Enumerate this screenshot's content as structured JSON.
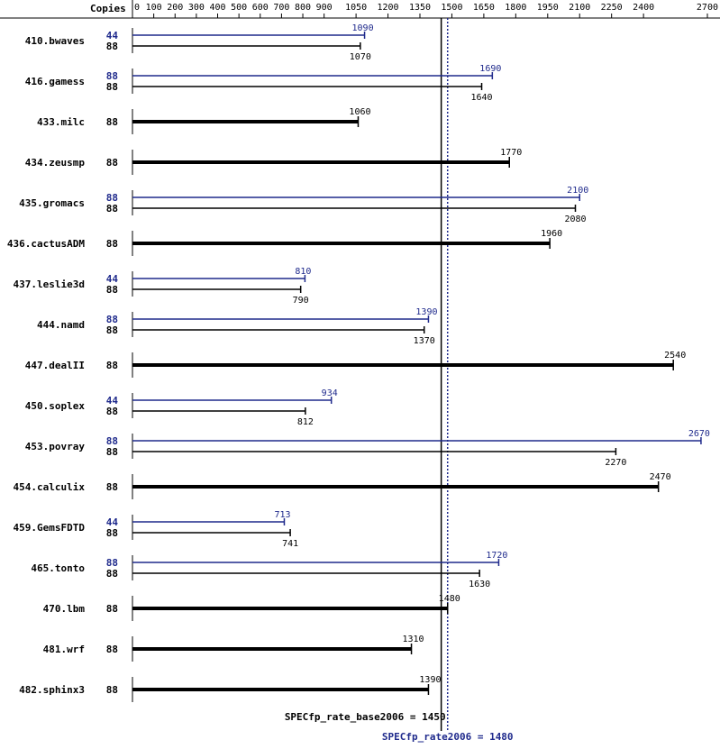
{
  "chart_data": {
    "type": "bar",
    "orientation": "horizontal",
    "copies_header": "Copies",
    "x_ticks": [
      0,
      100,
      200,
      300,
      400,
      500,
      600,
      700,
      800,
      900,
      1050,
      1200,
      1350,
      1500,
      1650,
      1800,
      1950,
      2100,
      2250,
      2400,
      2700
    ],
    "xlim": [
      0,
      2700
    ],
    "legend": "none",
    "grid": false,
    "colors": {
      "peak": "#1f2a8c",
      "base": "#000000"
    },
    "benchmarks": [
      {
        "name": "410.bwaves",
        "peak": {
          "copies": "44",
          "value": 1090,
          "label": "1090"
        },
        "base": {
          "copies": "88",
          "value": 1070,
          "label": "1070"
        }
      },
      {
        "name": "416.gamess",
        "peak": {
          "copies": "88",
          "value": 1690,
          "label": "1690"
        },
        "base": {
          "copies": "88",
          "value": 1640,
          "label": "1640"
        }
      },
      {
        "name": "433.milc",
        "base": {
          "copies": "88",
          "value": 1060,
          "label": "1060"
        }
      },
      {
        "name": "434.zeusmp",
        "base": {
          "copies": "88",
          "value": 1770,
          "label": "1770"
        }
      },
      {
        "name": "435.gromacs",
        "peak": {
          "copies": "88",
          "value": 2100,
          "label": "2100"
        },
        "base": {
          "copies": "88",
          "value": 2080,
          "label": "2080"
        }
      },
      {
        "name": "436.cactusADM",
        "base": {
          "copies": "88",
          "value": 1960,
          "label": "1960"
        }
      },
      {
        "name": "437.leslie3d",
        "peak": {
          "copies": "44",
          "value": 810,
          "label": "810"
        },
        "base": {
          "copies": "88",
          "value": 790,
          "label": "790"
        }
      },
      {
        "name": "444.namd",
        "peak": {
          "copies": "88",
          "value": 1390,
          "label": "1390"
        },
        "base": {
          "copies": "88",
          "value": 1370,
          "label": "1370"
        }
      },
      {
        "name": "447.dealII",
        "base": {
          "copies": "88",
          "value": 2540,
          "label": "2540"
        }
      },
      {
        "name": "450.soplex",
        "peak": {
          "copies": "44",
          "value": 934,
          "label": "934"
        },
        "base": {
          "copies": "88",
          "value": 812,
          "label": "812"
        }
      },
      {
        "name": "453.povray",
        "peak": {
          "copies": "88",
          "value": 2670,
          "label": "2670"
        },
        "base": {
          "copies": "88",
          "value": 2270,
          "label": "2270"
        }
      },
      {
        "name": "454.calculix",
        "base": {
          "copies": "88",
          "value": 2470,
          "label": "2470"
        }
      },
      {
        "name": "459.GemsFDTD",
        "peak": {
          "copies": "44",
          "value": 713,
          "label": "713"
        },
        "base": {
          "copies": "88",
          "value": 741,
          "label": "741"
        }
      },
      {
        "name": "465.tonto",
        "peak": {
          "copies": "88",
          "value": 1720,
          "label": "1720"
        },
        "base": {
          "copies": "88",
          "value": 1630,
          "label": "1630"
        }
      },
      {
        "name": "470.lbm",
        "base": {
          "copies": "88",
          "value": 1480,
          "label": "1480"
        }
      },
      {
        "name": "481.wrf",
        "base": {
          "copies": "88",
          "value": 1310,
          "label": "1310"
        }
      },
      {
        "name": "482.sphinx3",
        "base": {
          "copies": "88",
          "value": 1390,
          "label": "1390"
        }
      }
    ],
    "reference_lines": {
      "base": {
        "value": 1450,
        "label": "SPECfp_rate_base2006 = 1450"
      },
      "peak": {
        "value": 1480,
        "label": "SPECfp_rate2006 = 1480"
      }
    }
  }
}
